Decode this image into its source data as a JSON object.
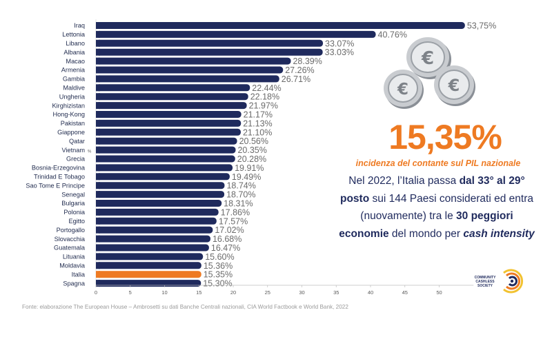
{
  "chart_data": {
    "type": "bar",
    "orientation": "horizontal",
    "categories": [
      "Iraq",
      "Lettonia",
      "Libano",
      "Albania",
      "Macao",
      "Armenia",
      "Gambia",
      "Maldive",
      "Ungheria",
      "Kirghizistan",
      "Hong-Kong",
      "Pakistan",
      "Giappone",
      "Qatar",
      "Vietnam",
      "Grecia",
      "Bosnia-Erzegovina",
      "Trinidad E Tobago",
      "Sao Tome E Principe",
      "Senegal",
      "Bulgaria",
      "Polonia",
      "Egitto",
      "Portogallo",
      "Slovacchia",
      "Guatemala",
      "Lituania",
      "Moldavia",
      "Italia",
      "Spagna"
    ],
    "values": [
      53.75,
      40.76,
      33.07,
      33.03,
      28.39,
      27.26,
      26.71,
      22.44,
      22.18,
      21.97,
      21.17,
      21.13,
      21.1,
      20.56,
      20.35,
      20.28,
      19.91,
      19.49,
      18.74,
      18.7,
      18.31,
      17.86,
      17.57,
      17.02,
      16.68,
      16.47,
      15.6,
      15.36,
      15.35,
      15.3
    ],
    "value_labels": [
      "53,75%",
      "40.76%",
      "33.07%",
      "33.03%",
      "28.39%",
      "27.26%",
      "26.71%",
      "22.44%",
      "22.18%",
      "21.97%",
      "21.17%",
      "21.13%",
      "21.10%",
      "20.56%",
      "20.35%",
      "20.28%",
      "19.91%",
      "19.49%",
      "18.74%",
      "18.70%",
      "18.31%",
      "17.86%",
      "17.57%",
      "17.02%",
      "16.68%",
      "16.47%",
      "15.60%",
      "15.36%",
      "15.35%",
      "15.30%"
    ],
    "highlight_category": "Italia",
    "x_ticks": [
      0,
      5,
      10,
      15,
      20,
      25,
      30,
      35,
      40,
      45,
      50
    ],
    "x_unit_marker": "%",
    "xlim": [
      0,
      55
    ],
    "colors": {
      "bar": "#1f2a5d",
      "highlight": "#ee7a22",
      "value_label": "#6b6b6b"
    }
  },
  "headline": {
    "value": "15,35%",
    "subtitle": "incidenza del contante sul PIL nazionale"
  },
  "description": {
    "p1": "Nel 2022, l’Italia passa ",
    "b1": "dal 33° al 29° posto",
    "p2": " sui 144 Paesi considerati ed entra (nuovamente) tra le ",
    "b2": "30 peggiori economie",
    "p3": " del mondo per ",
    "i1": "cash intensity"
  },
  "logo": {
    "line1": "COMMUNITY",
    "line2": "CASHLESS",
    "line3": "SOCIETY",
    "icon": "community-cashless-society-logo"
  },
  "decoration": {
    "icon": "euro-coins-icon"
  },
  "source": "Fonte: elaborazione The European House – Ambrosetti su dati Banche Centrali nazionali, CIA World Factbook e World Bank, 2022"
}
